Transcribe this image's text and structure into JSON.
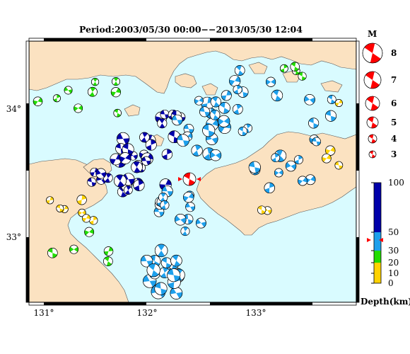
{
  "title": "Period:2003/05/30 00:00−−2013/05/30 12:04",
  "colors": {
    "sea": "#d9fbff",
    "land": "#fbe2c1",
    "coast": "#555555",
    "deep": "#0000aa",
    "mid": "#1ea0ec",
    "shallow20": "#22dd00",
    "shallow10": "#ffd200",
    "target": "#ff0000"
  },
  "map": {
    "x_ticks": [
      "131°",
      "132°",
      "133°"
    ],
    "y_ticks": [
      "34°",
      "33°"
    ]
  },
  "magnitude_legend": {
    "title": "M",
    "items": [
      "8",
      "7",
      "6",
      "5",
      "4",
      "3"
    ]
  },
  "depth_legend": {
    "unit_label": "Depth(km)",
    "ticks": [
      "100",
      "50",
      "30",
      "20",
      "10",
      "0"
    ]
  }
}
